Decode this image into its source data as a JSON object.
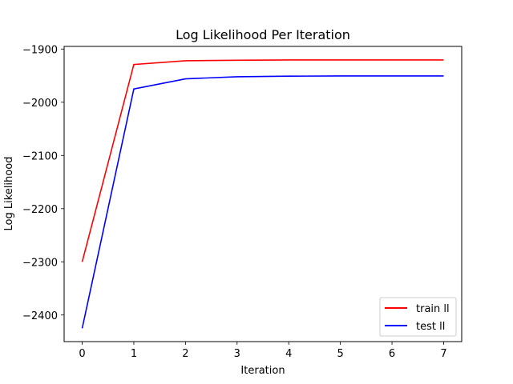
{
  "chart_data": {
    "type": "line",
    "title": "Log Likelihood Per Iteration",
    "xlabel": "Iteration",
    "ylabel": "Log Likelihood",
    "x": [
      0,
      1,
      2,
      3,
      4,
      5,
      6,
      7
    ],
    "xlim": [
      -0.35,
      7.35
    ],
    "ylim": [
      -2450,
      -1895
    ],
    "xticks": [
      0,
      1,
      2,
      3,
      4,
      5,
      6,
      7
    ],
    "yticks": [
      -2400,
      -2300,
      -2200,
      -2100,
      -2000,
      -1900
    ],
    "ytick_labels": [
      "−2400",
      "−2300",
      "−2200",
      "−2100",
      "−2000",
      "−1900"
    ],
    "grid": false,
    "legend_position": "lower-right",
    "series": [
      {
        "name": "train ll",
        "color": "#ff0000",
        "values": [
          -2300,
          -1929,
          -1922,
          -1921,
          -1920.5,
          -1920.5,
          -1920.5,
          -1920.5
        ]
      },
      {
        "name": "test ll",
        "color": "#0000ff",
        "values": [
          -2425,
          -1975,
          -1956,
          -1952,
          -1951,
          -1950.5,
          -1950.5,
          -1950.5
        ]
      }
    ]
  }
}
